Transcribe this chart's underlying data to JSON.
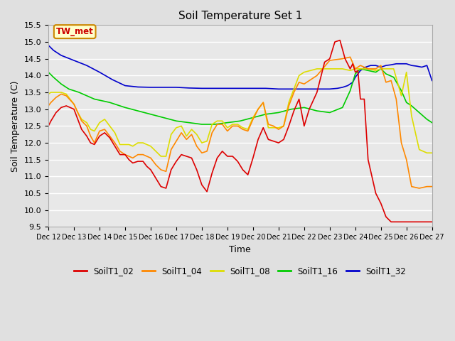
{
  "title": "Soil Temperature Set 1",
  "xlabel": "Time",
  "ylabel": "Soil Temperature (C)",
  "ylim": [
    9.5,
    15.5
  ],
  "xlim": [
    0,
    15
  ],
  "x_tick_labels": [
    "Dec 12",
    "Dec 13",
    "Dec 14",
    "Dec 15",
    "Dec 16",
    "Dec 17",
    "Dec 18",
    "Dec 19",
    "Dec 20",
    "Dec 21",
    "Dec 22",
    "Dec 23",
    "Dec 24",
    "Dec 25",
    "Dec 26",
    "Dec 27"
  ],
  "background_color": "#e0e0e0",
  "plot_bg_color": "#e8e8e8",
  "grid_color": "#ffffff",
  "annotation_text": "TW_met",
  "annotation_color": "#cc0000",
  "annotation_bg": "#ffffcc",
  "annotation_border": "#cc8800",
  "series": {
    "SoilT1_02": {
      "color": "#dd0000",
      "values_x": [
        0,
        0.1,
        0.3,
        0.5,
        0.7,
        1.0,
        1.15,
        1.3,
        1.5,
        1.65,
        1.8,
        2.0,
        2.2,
        2.4,
        2.6,
        2.8,
        3.0,
        3.15,
        3.3,
        3.5,
        3.7,
        3.85,
        4.0,
        4.2,
        4.4,
        4.6,
        4.8,
        5.0,
        5.2,
        5.4,
        5.6,
        5.8,
        6.0,
        6.2,
        6.4,
        6.6,
        6.8,
        7.0,
        7.2,
        7.4,
        7.6,
        7.8,
        8.0,
        8.2,
        8.4,
        8.6,
        8.8,
        9.0,
        9.2,
        9.4,
        9.6,
        9.8,
        10.0,
        10.2,
        10.5,
        10.8,
        11.0,
        11.2,
        11.4,
        11.6,
        11.8,
        11.9,
        12.0,
        12.1,
        12.2,
        12.35,
        12.5,
        12.65,
        12.8,
        13.0,
        13.2,
        13.4,
        13.55,
        13.7,
        13.85,
        14.0,
        14.15,
        14.3,
        14.5,
        14.7,
        14.85,
        15.0
      ],
      "values_y": [
        12.5,
        12.65,
        12.9,
        13.05,
        13.1,
        13.0,
        12.7,
        12.4,
        12.2,
        12.0,
        11.95,
        12.2,
        12.3,
        12.15,
        11.9,
        11.65,
        11.65,
        11.5,
        11.4,
        11.45,
        11.45,
        11.3,
        11.2,
        10.95,
        10.7,
        10.65,
        11.2,
        11.45,
        11.65,
        11.6,
        11.55,
        11.2,
        10.75,
        10.55,
        11.1,
        11.55,
        11.75,
        11.6,
        11.6,
        11.45,
        11.2,
        11.05,
        11.55,
        12.1,
        12.45,
        12.1,
        12.05,
        12.0,
        12.1,
        12.5,
        12.95,
        13.3,
        12.5,
        13.0,
        13.5,
        14.4,
        14.5,
        15.0,
        15.05,
        14.5,
        14.2,
        14.35,
        14.1,
        14.15,
        13.3,
        13.3,
        11.5,
        11.0,
        10.5,
        10.2,
        9.8,
        9.65,
        9.65,
        9.65,
        9.65,
        9.65,
        9.65,
        9.65,
        9.65,
        9.65,
        9.65,
        9.65
      ]
    },
    "SoilT1_04": {
      "color": "#ff8800",
      "values_x": [
        0,
        0.1,
        0.3,
        0.5,
        0.7,
        1.0,
        1.15,
        1.3,
        1.5,
        1.65,
        1.8,
        2.0,
        2.2,
        2.4,
        2.6,
        2.8,
        3.0,
        3.15,
        3.3,
        3.5,
        3.7,
        3.85,
        4.0,
        4.2,
        4.4,
        4.6,
        4.8,
        5.0,
        5.2,
        5.4,
        5.6,
        5.8,
        6.0,
        6.2,
        6.4,
        6.6,
        6.8,
        7.0,
        7.2,
        7.4,
        7.6,
        7.8,
        8.0,
        8.2,
        8.4,
        8.6,
        8.8,
        9.0,
        9.2,
        9.4,
        9.6,
        9.8,
        10.0,
        10.5,
        11.0,
        11.5,
        11.8,
        12.0,
        12.2,
        12.5,
        12.8,
        13.0,
        13.2,
        13.4,
        13.6,
        13.8,
        14.0,
        14.2,
        14.5,
        14.8,
        15.0
      ],
      "values_y": [
        13.1,
        13.2,
        13.35,
        13.45,
        13.4,
        13.15,
        12.9,
        12.65,
        12.5,
        12.2,
        12.0,
        12.35,
        12.4,
        12.2,
        12.0,
        11.75,
        11.65,
        11.6,
        11.55,
        11.65,
        11.65,
        11.6,
        11.55,
        11.35,
        11.2,
        11.15,
        11.8,
        12.05,
        12.3,
        12.1,
        12.25,
        11.9,
        11.7,
        11.75,
        12.3,
        12.55,
        12.55,
        12.35,
        12.5,
        12.5,
        12.4,
        12.35,
        12.7,
        13.0,
        13.2,
        12.55,
        12.5,
        12.4,
        12.5,
        13.1,
        13.5,
        13.8,
        13.75,
        14.0,
        14.45,
        14.5,
        14.55,
        14.2,
        14.3,
        14.2,
        14.2,
        14.3,
        13.8,
        13.85,
        13.3,
        12.0,
        11.5,
        10.7,
        10.65,
        10.7,
        10.7
      ]
    },
    "SoilT1_08": {
      "color": "#dddd00",
      "values_x": [
        0,
        0.1,
        0.3,
        0.5,
        0.7,
        1.0,
        1.15,
        1.3,
        1.5,
        1.65,
        1.8,
        2.0,
        2.2,
        2.4,
        2.6,
        2.8,
        3.0,
        3.15,
        3.3,
        3.5,
        3.7,
        3.85,
        4.0,
        4.2,
        4.4,
        4.6,
        4.8,
        5.0,
        5.2,
        5.4,
        5.6,
        5.8,
        6.0,
        6.2,
        6.4,
        6.6,
        6.8,
        7.0,
        7.2,
        7.4,
        7.6,
        7.8,
        8.0,
        8.2,
        8.4,
        8.6,
        8.8,
        9.0,
        9.2,
        9.4,
        9.6,
        9.8,
        10.0,
        10.5,
        11.0,
        11.5,
        11.8,
        12.0,
        12.2,
        12.5,
        12.8,
        13.0,
        13.2,
        13.5,
        13.8,
        14.0,
        14.2,
        14.5,
        14.8,
        15.0
      ],
      "values_y": [
        13.45,
        13.5,
        13.5,
        13.5,
        13.45,
        13.15,
        12.9,
        12.7,
        12.6,
        12.4,
        12.35,
        12.6,
        12.7,
        12.5,
        12.3,
        11.95,
        11.95,
        11.95,
        11.9,
        12.0,
        12.0,
        11.95,
        11.9,
        11.75,
        11.6,
        11.6,
        12.25,
        12.45,
        12.5,
        12.2,
        12.4,
        12.25,
        12.0,
        12.05,
        12.55,
        12.65,
        12.65,
        12.45,
        12.55,
        12.55,
        12.45,
        12.4,
        12.75,
        13.0,
        13.2,
        12.45,
        12.45,
        12.45,
        12.5,
        13.2,
        13.6,
        14.0,
        14.1,
        14.2,
        14.2,
        14.2,
        14.15,
        14.2,
        14.2,
        14.2,
        14.15,
        14.2,
        14.2,
        14.2,
        13.4,
        14.1,
        12.8,
        11.8,
        11.7,
        11.7
      ]
    },
    "SoilT1_16": {
      "color": "#00cc00",
      "values_x": [
        0,
        0.2,
        0.5,
        0.8,
        1.2,
        1.8,
        2.4,
        3.0,
        3.5,
        4.0,
        4.5,
        5.0,
        5.5,
        6.0,
        6.5,
        7.0,
        7.5,
        8.0,
        8.5,
        9.0,
        9.5,
        10.0,
        10.5,
        11.0,
        11.5,
        11.8,
        12.0,
        12.2,
        12.5,
        12.8,
        13.0,
        13.2,
        13.5,
        13.8,
        14.0,
        14.2,
        14.5,
        14.8,
        15.0
      ],
      "values_y": [
        14.1,
        13.95,
        13.75,
        13.6,
        13.5,
        13.3,
        13.2,
        13.05,
        12.95,
        12.85,
        12.75,
        12.65,
        12.6,
        12.55,
        12.55,
        12.6,
        12.65,
        12.75,
        12.85,
        12.9,
        13.0,
        13.05,
        12.95,
        12.9,
        13.05,
        13.55,
        14.05,
        14.2,
        14.15,
        14.1,
        14.2,
        14.05,
        13.95,
        13.55,
        13.2,
        13.1,
        12.9,
        12.7,
        12.6
      ]
    },
    "SoilT1_32": {
      "color": "#0000cc",
      "values_x": [
        0,
        0.2,
        0.5,
        1.0,
        1.5,
        2.0,
        2.5,
        3.0,
        3.5,
        4.0,
        4.5,
        5.0,
        5.5,
        6.0,
        6.5,
        7.0,
        7.5,
        8.0,
        8.5,
        9.0,
        9.5,
        10.0,
        10.5,
        11.0,
        11.3,
        11.5,
        11.7,
        11.9,
        12.0,
        12.2,
        12.4,
        12.6,
        12.8,
        13.0,
        13.2,
        13.4,
        13.6,
        13.8,
        14.0,
        14.2,
        14.4,
        14.6,
        14.8,
        15.0
      ],
      "values_y": [
        14.9,
        14.75,
        14.6,
        14.45,
        14.3,
        14.1,
        13.88,
        13.7,
        13.66,
        13.65,
        13.65,
        13.65,
        13.63,
        13.62,
        13.62,
        13.62,
        13.62,
        13.62,
        13.62,
        13.6,
        13.6,
        13.6,
        13.6,
        13.6,
        13.62,
        13.65,
        13.7,
        13.8,
        13.95,
        14.15,
        14.25,
        14.3,
        14.3,
        14.25,
        14.3,
        14.32,
        14.35,
        14.35,
        14.35,
        14.3,
        14.28,
        14.25,
        14.3,
        13.85
      ]
    }
  }
}
